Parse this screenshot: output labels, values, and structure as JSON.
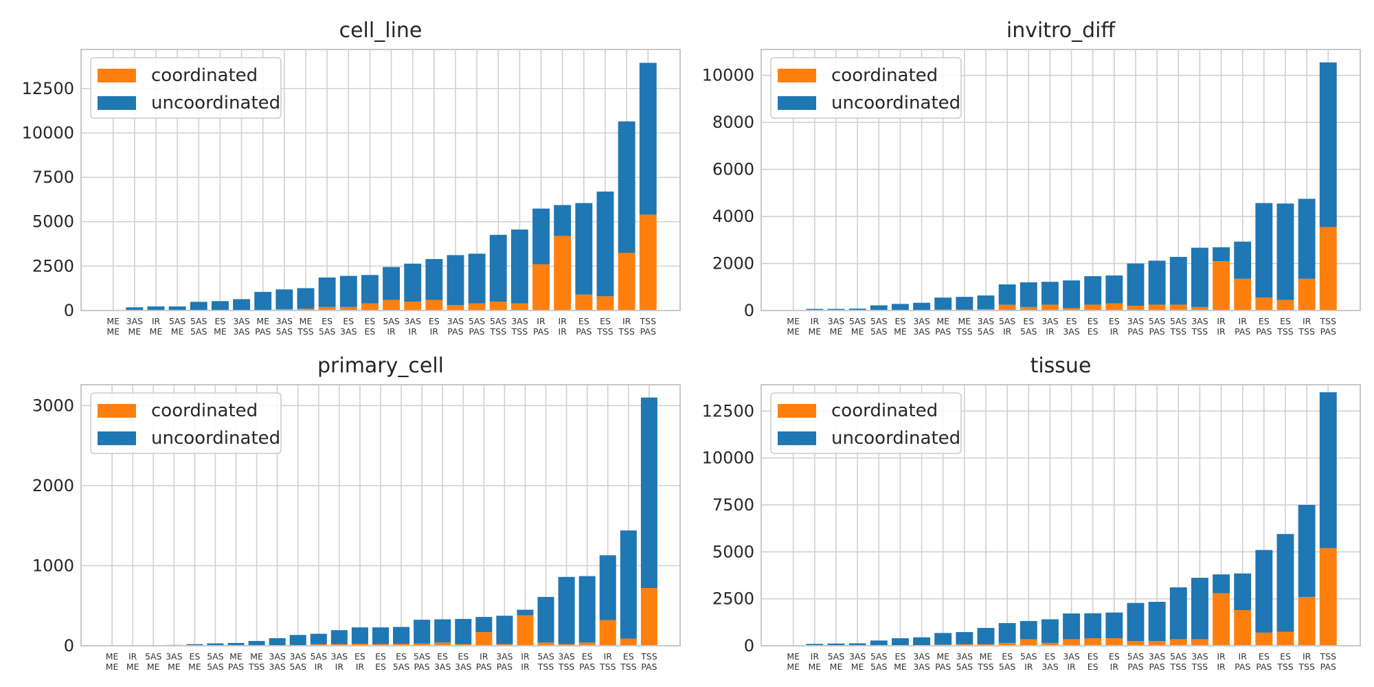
{
  "chart_data": [
    {
      "type": "bar",
      "stacked": true,
      "title": "cell_line",
      "categories": [
        "ME\nME",
        "3AS\nME",
        "IR\nME",
        "5AS\nME",
        "5AS\n5AS",
        "ES\nME",
        "3AS\n3AS",
        "ME\nPAS",
        "3AS\n5AS",
        "ME\nTSS",
        "ES\n5AS",
        "ES\n3AS",
        "ES\nES",
        "5AS\nIR",
        "3AS\nIR",
        "ES\nIR",
        "3AS\nPAS",
        "5AS\nPAS",
        "5AS\nTSS",
        "3AS\nTSS",
        "IR\nPAS",
        "IR\nIR",
        "ES\nPAS",
        "ES\nTSS",
        "IR\nTSS",
        "TSS\nPAS"
      ],
      "series": [
        {
          "name": "coordinated",
          "color": "#ff7f0e",
          "values": [
            0,
            0,
            0,
            0,
            10,
            10,
            20,
            30,
            80,
            100,
            200,
            200,
            400,
            600,
            500,
            600,
            300,
            400,
            500,
            400,
            2600,
            4200,
            900,
            800,
            3250,
            5400
          ]
        },
        {
          "name": "uncoordinated",
          "color": "#1f77b4",
          "values": [
            0,
            180,
            230,
            230,
            480,
            520,
            620,
            1020,
            1110,
            1160,
            1660,
            1750,
            1600,
            1850,
            2140,
            2300,
            2820,
            2800,
            3760,
            4160,
            3140,
            1740,
            5150,
            5900,
            7400,
            8550
          ]
        }
      ],
      "yticks": [
        0,
        2500,
        5000,
        7500,
        10000,
        12500
      ],
      "ylim": [
        0,
        14700
      ],
      "legend": "top-left",
      "grid": true
    },
    {
      "type": "bar",
      "stacked": true,
      "title": "invitro_diff",
      "categories": [
        "ME\nME",
        "IR\nME",
        "3AS\nME",
        "5AS\nME",
        "5AS\n5AS",
        "ES\nME",
        "3AS\n3AS",
        "ME\nPAS",
        "ME\nTSS",
        "3AS\n5AS",
        "5AS\nIR",
        "ES\n5AS",
        "3AS\nIR",
        "ES\n3AS",
        "ES\nES",
        "ES\nIR",
        "3AS\nPAS",
        "5AS\nPAS",
        "5AS\nTSS",
        "3AS\nTSS",
        "IR\nIR",
        "IR\nPAS",
        "ES\nPAS",
        "ES\nTSS",
        "IR\nTSS",
        "TSS\nPAS"
      ],
      "series": [
        {
          "name": "coordinated",
          "color": "#ff7f0e",
          "values": [
            0,
            0,
            0,
            0,
            20,
            20,
            20,
            40,
            40,
            60,
            250,
            150,
            250,
            100,
            250,
            300,
            200,
            250,
            250,
            150,
            2100,
            1350,
            550,
            450,
            1350,
            3550
          ]
        },
        {
          "name": "uncoordinated",
          "color": "#1f77b4",
          "values": [
            0,
            70,
            70,
            80,
            200,
            260,
            310,
            510,
            540,
            580,
            860,
            1050,
            970,
            1180,
            1210,
            1190,
            1800,
            1870,
            2030,
            2520,
            590,
            1580,
            4020,
            4100,
            3400,
            7000
          ]
        }
      ],
      "yticks": [
        0,
        2000,
        4000,
        6000,
        8000,
        10000
      ],
      "ylim": [
        0,
        11100
      ],
      "legend": "top-left",
      "grid": true
    },
    {
      "type": "bar",
      "stacked": true,
      "title": "primary_cell",
      "categories": [
        "ME\nME",
        "IR\nME",
        "5AS\nME",
        "3AS\nME",
        "ES\nME",
        "5AS\n5AS",
        "ME\nPAS",
        "ME\nTSS",
        "3AS\n3AS",
        "3AS\n5AS",
        "5AS\nIR",
        "3AS\nIR",
        "ES\nIR",
        "ES\nES",
        "ES\n5AS",
        "5AS\nPAS",
        "ES\n3AS",
        "ES\n3AS",
        "IR\nPAS",
        "3AS\nPAS",
        "IR\nIR",
        "5AS\nTSS",
        "3AS\nTSS",
        "ES\nPAS",
        "IR\nTSS",
        "ES\nTSS",
        "TSS\nPAS"
      ],
      "series": [
        {
          "name": "coordinated",
          "color": "#ff7f0e",
          "values": [
            0,
            0,
            0,
            0,
            0,
            0,
            0,
            0,
            0,
            5,
            20,
            20,
            25,
            20,
            25,
            30,
            40,
            20,
            170,
            20,
            380,
            40,
            20,
            40,
            320,
            90,
            720
          ]
        },
        {
          "name": "uncoordinated",
          "color": "#1f77b4",
          "values": [
            0,
            2,
            4,
            10,
            20,
            30,
            35,
            60,
            95,
            130,
            130,
            175,
            205,
            210,
            210,
            295,
            290,
            315,
            190,
            355,
            70,
            570,
            840,
            830,
            810,
            1350,
            2380
          ]
        }
      ],
      "yticks": [
        0,
        1000,
        2000,
        3000
      ],
      "ylim": [
        0,
        3260
      ],
      "legend": "top-left",
      "grid": true
    },
    {
      "type": "bar",
      "stacked": true,
      "title": "tissue",
      "categories": [
        "ME\nME",
        "IR\nME",
        "5AS\nME",
        "3AS\nME",
        "5AS\n5AS",
        "ES\nME",
        "3AS\n3AS",
        "ME\nPAS",
        "3AS\n5AS",
        "ME\nTSS",
        "ES\n5AS",
        "5AS\nIR",
        "ES\n3AS",
        "3AS\nIR",
        "ES\nES",
        "ES\nIR",
        "5AS\nPAS",
        "3AS\nPAS",
        "5AS\nTSS",
        "3AS\nTSS",
        "IR\nIR",
        "IR\nPAS",
        "ES\nPAS",
        "ES\nTSS",
        "IR\nTSS",
        "TSS\nPAS"
      ],
      "series": [
        {
          "name": "coordinated",
          "color": "#ff7f0e",
          "values": [
            0,
            0,
            0,
            0,
            20,
            30,
            30,
            60,
            80,
            80,
            150,
            350,
            150,
            350,
            400,
            400,
            250,
            250,
            350,
            350,
            2800,
            1900,
            700,
            750,
            2600,
            5200
          ]
        },
        {
          "name": "uncoordinated",
          "color": "#1f77b4",
          "values": [
            0,
            100,
            120,
            130,
            260,
            370,
            420,
            620,
            650,
            870,
            1060,
            970,
            1260,
            1370,
            1330,
            1370,
            2030,
            2090,
            2760,
            3270,
            1000,
            1950,
            4400,
            5200,
            4900,
            8300
          ]
        }
      ],
      "yticks": [
        0,
        2500,
        5000,
        7500,
        10000,
        12500
      ],
      "ylim": [
        0,
        13900
      ],
      "legend": "top-left",
      "grid": true
    }
  ]
}
